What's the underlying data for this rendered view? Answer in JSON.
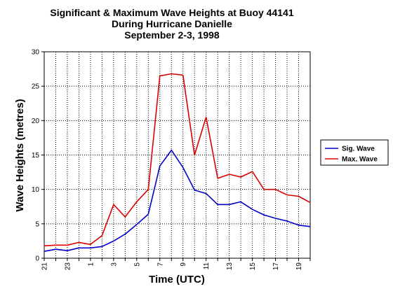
{
  "chart_data": {
    "type": "line",
    "title": [
      "Significant & Maximum Wave Heights at Buoy 44141",
      "During Hurricane Danielle",
      "September 2-3, 1998"
    ],
    "xlabel": "Time (UTC)",
    "ylabel": "Wave Heights (metres)",
    "ylim": [
      0,
      30
    ],
    "yticks": [
      0,
      5,
      10,
      15,
      20,
      25,
      30
    ],
    "x": [
      21,
      22,
      23,
      0,
      1,
      2,
      3,
      4,
      5,
      6,
      7,
      8,
      9,
      10,
      11,
      12,
      13,
      14,
      15,
      16,
      17,
      18,
      19,
      20
    ],
    "xtick_labels": [
      "21",
      "",
      "23",
      "",
      "1",
      "",
      "3",
      "",
      "5",
      "",
      "7",
      "",
      "9",
      "",
      "11",
      "",
      "13",
      "",
      "15",
      "",
      "17",
      "",
      "19",
      ""
    ],
    "grid": true,
    "legend_position": "right",
    "series": [
      {
        "name": "Sig. Wave",
        "color": "#0000cc",
        "values": [
          1.0,
          1.3,
          1.1,
          1.5,
          1.5,
          1.7,
          2.5,
          3.5,
          4.9,
          6.4,
          13.4,
          15.7,
          13.2,
          9.9,
          9.4,
          7.8,
          7.8,
          8.2,
          7.1,
          6.3,
          5.8,
          5.4,
          4.8,
          4.6
        ]
      },
      {
        "name": "Max. Wave",
        "color": "#dd0000",
        "values": [
          1.8,
          1.9,
          1.9,
          2.3,
          2.0,
          3.3,
          7.8,
          6.0,
          8.2,
          10.0,
          26.5,
          26.8,
          26.6,
          15.0,
          20.5,
          11.6,
          12.2,
          11.8,
          12.6,
          10.0,
          10.0,
          9.2,
          9.0,
          8.1
        ]
      }
    ]
  }
}
